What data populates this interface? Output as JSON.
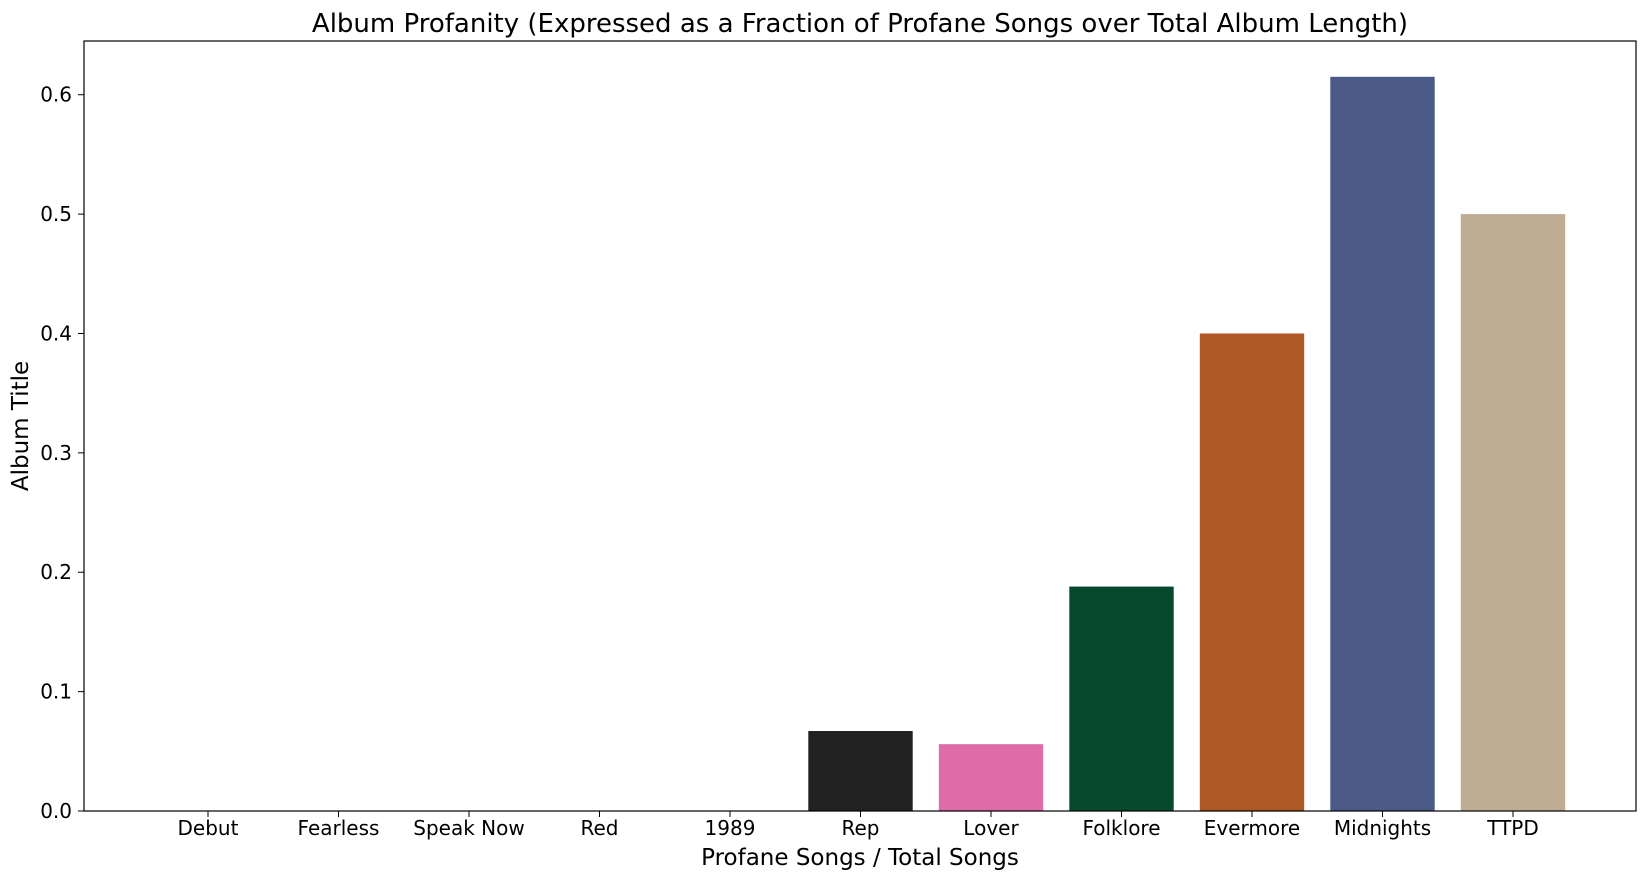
{
  "chart_data": {
    "type": "bar",
    "title": "Album Profanity (Expressed as a Fraction of Profane Songs over Total Album Length)",
    "xlabel": "Profane Songs / Total Songs",
    "ylabel": "Album Title",
    "categories": [
      "Debut",
      "Fearless",
      "Speak Now",
      "Red",
      "1989",
      "Rep",
      "Lover",
      "Folklore",
      "Evermore",
      "Midnights",
      "TTPD"
    ],
    "values": [
      0,
      0,
      0,
      0,
      0,
      0.067,
      0.056,
      0.188,
      0.4,
      0.615,
      0.5
    ],
    "colors": [
      "#212121",
      "#212121",
      "#212121",
      "#212121",
      "#212121",
      "#212121",
      "#dd6ca8",
      "#06492c",
      "#af5725",
      "#4b5a86",
      "#bead94"
    ],
    "ylim": [
      0,
      0.645
    ],
    "yticks": [
      0.0,
      0.1,
      0.2,
      0.3,
      0.4,
      0.5,
      0.6
    ],
    "ytick_labels": [
      "0.0",
      "0.1",
      "0.2",
      "0.3",
      "0.4",
      "0.5",
      "0.6"
    ],
    "grid": false,
    "legend": "none"
  }
}
